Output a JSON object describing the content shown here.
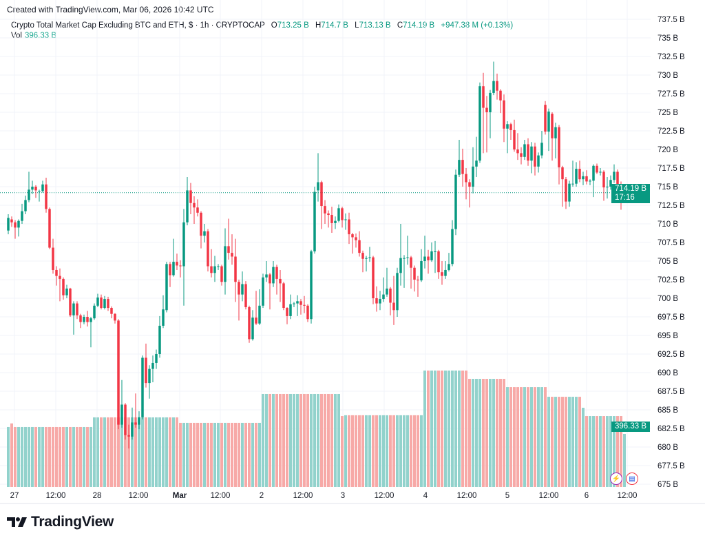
{
  "credit": "Created with TradingView.com, Mar 06, 2026 10:42 UTC",
  "legend": {
    "symbol": "Crypto Total Market Cap Excluding BTC and ETH, $ · 1h · CRYPTOCAP",
    "o_label": "O",
    "o": "713.25 B",
    "h_label": "H",
    "h": "714.7 B",
    "l_label": "L",
    "l": "713.13 B",
    "c_label": "C",
    "c": "714.19 B",
    "change": "+947.38 M (+0.13%)",
    "vol_label": "Vol",
    "vol": "396.33 B"
  },
  "price_badge": {
    "value": "714.19 B",
    "countdown": "17:16"
  },
  "volume_badge": "396.33 B",
  "logo_text": "TradingView",
  "icons": [
    "lightning-icon",
    "us-flag-icon"
  ],
  "colors": {
    "up": "#089981",
    "down": "#F23645",
    "vol_up": "#92D2CC",
    "vol_down": "#F7A9A7",
    "grid": "#F0F3FA"
  },
  "chart_data": {
    "type": "candlestick",
    "interval": "1h",
    "ylim": [
      675,
      737.5
    ],
    "y_ticks": [
      "737.5 B",
      "735 B",
      "732.5 B",
      "730 B",
      "727.5 B",
      "725 B",
      "722.5 B",
      "720 B",
      "717.5 B",
      "715 B",
      "712.5 B",
      "710 B",
      "707.5 B",
      "705 B",
      "702.5 B",
      "700 B",
      "697.5 B",
      "695 B",
      "692.5 B",
      "690 B",
      "687.5 B",
      "685 B",
      "682.5 B",
      "680 B",
      "677.5 B",
      "675 B"
    ],
    "x_ticks": [
      {
        "label": "27",
        "bold": false
      },
      {
        "label": "12:00",
        "bold": false
      },
      {
        "label": "28",
        "bold": false
      },
      {
        "label": "12:00",
        "bold": false
      },
      {
        "label": "Mar",
        "bold": true
      },
      {
        "label": "12:00",
        "bold": false
      },
      {
        "label": "2",
        "bold": false
      },
      {
        "label": "12:00",
        "bold": false
      },
      {
        "label": "3",
        "bold": false
      },
      {
        "label": "12:00",
        "bold": false
      },
      {
        "label": "4",
        "bold": false
      },
      {
        "label": "12:00",
        "bold": false
      },
      {
        "label": "5",
        "bold": false
      },
      {
        "label": "12:00",
        "bold": false
      },
      {
        "label": "6",
        "bold": false
      },
      {
        "label": "12:00",
        "bold": false
      }
    ],
    "last_price": 714.19,
    "ohlc": [
      [
        709.1,
        711.3,
        708.6,
        710.8
      ],
      [
        710.6,
        711.0,
        709.6,
        710.2
      ],
      [
        710.2,
        710.5,
        708.0,
        709.5
      ],
      [
        709.5,
        710.6,
        708.3,
        710.4
      ],
      [
        710.4,
        712.7,
        710.0,
        711.7
      ],
      [
        711.7,
        713.8,
        711.3,
        713.2
      ],
      [
        713.2,
        717.0,
        712.9,
        714.6
      ],
      [
        714.6,
        715.8,
        714.0,
        715.0
      ],
      [
        715.0,
        715.2,
        713.5,
        714.5
      ],
      [
        714.4,
        714.6,
        713.0,
        714.4
      ],
      [
        714.4,
        715.8,
        714.2,
        715.3
      ],
      [
        715.3,
        716.2,
        711.5,
        712.0
      ],
      [
        712.0,
        712.2,
        706.6,
        706.8
      ],
      [
        706.8,
        708.0,
        703.3,
        703.8
      ],
      [
        703.8,
        704.3,
        701.7,
        703.0
      ],
      [
        703.0,
        704.0,
        699.6,
        702.6
      ],
      [
        702.6,
        702.8,
        699.8,
        700.4
      ],
      [
        700.4,
        701.8,
        700.0,
        701.3
      ],
      [
        701.3,
        701.4,
        697.5,
        697.7
      ],
      [
        697.7,
        699.6,
        695.1,
        699.3
      ],
      [
        699.3,
        699.6,
        697.2,
        697.7
      ],
      [
        697.7,
        697.9,
        696.0,
        696.8
      ],
      [
        696.8,
        697.8,
        696.5,
        697.5
      ],
      [
        697.5,
        698.3,
        696.2,
        696.8
      ],
      [
        696.8,
        697.5,
        693.4,
        697.3
      ],
      [
        697.3,
        699.3,
        697.1,
        699.0
      ],
      [
        699.0,
        700.6,
        698.8,
        700.1
      ],
      [
        700.1,
        700.5,
        698.5,
        698.7
      ],
      [
        698.7,
        700.3,
        698.5,
        699.9
      ],
      [
        699.9,
        700.2,
        698.3,
        698.7
      ],
      [
        698.7,
        698.9,
        697.3,
        697.9
      ],
      [
        697.9,
        698.0,
        696.6,
        697.0
      ],
      [
        697.0,
        697.2,
        682.4,
        683.0
      ],
      [
        683.0,
        689.0,
        682.6,
        685.7
      ],
      [
        685.7,
        685.9,
        681.0,
        681.6
      ],
      [
        681.6,
        683.0,
        679.8,
        681.4
      ],
      [
        681.4,
        685.3,
        681.0,
        683.3
      ],
      [
        683.3,
        687.2,
        682.6,
        683.0
      ],
      [
        683.0,
        684.8,
        682.4,
        684.0
      ],
      [
        684.0,
        692.3,
        683.7,
        692.0
      ],
      [
        692.0,
        693.9,
        688.0,
        688.6
      ],
      [
        688.6,
        691.0,
        686.5,
        690.5
      ],
      [
        690.5,
        692.3,
        688.7,
        691.3
      ],
      [
        691.3,
        693.1,
        690.5,
        692.5
      ],
      [
        692.5,
        697.6,
        692.0,
        696.3
      ],
      [
        696.3,
        700.4,
        696.0,
        698.5
      ],
      [
        698.4,
        704.9,
        698.1,
        704.6
      ],
      [
        704.6,
        704.9,
        701.5,
        703.1
      ],
      [
        703.1,
        708.0,
        702.9,
        704.9
      ],
      [
        704.9,
        706.0,
        703.8,
        704.4
      ],
      [
        704.4,
        705.1,
        702.8,
        704.3
      ],
      [
        704.3,
        712.0,
        699.0,
        710.2
      ],
      [
        710.2,
        716.3,
        709.8,
        714.5
      ],
      [
        714.5,
        715.5,
        711.3,
        712.8
      ],
      [
        712.8,
        713.7,
        710.0,
        712.2
      ],
      [
        712.2,
        713.3,
        711.0,
        711.5
      ],
      [
        711.5,
        711.7,
        706.7,
        708.4
      ],
      [
        708.4,
        710.0,
        707.5,
        709.0
      ],
      [
        709.0,
        709.3,
        703.6,
        704.3
      ],
      [
        704.3,
        706.6,
        702.8,
        703.4
      ],
      [
        703.4,
        705.7,
        702.2,
        704.3
      ],
      [
        704.3,
        704.6,
        703.8,
        704.3
      ],
      [
        704.3,
        704.5,
        701.7,
        702.2
      ],
      [
        702.2,
        709.4,
        700.5,
        707.0
      ],
      [
        707.0,
        710.7,
        705.2,
        706.1
      ],
      [
        706.1,
        708.6,
        704.5,
        705.6
      ],
      [
        705.6,
        708.0,
        699.5,
        702.2
      ],
      [
        702.2,
        702.5,
        697.0,
        700.5
      ],
      [
        700.5,
        703.6,
        699.6,
        701.9
      ],
      [
        701.9,
        702.3,
        698.5,
        698.8
      ],
      [
        698.8,
        699.0,
        694.0,
        694.5
      ],
      [
        694.5,
        698.4,
        694.3,
        697.4
      ],
      [
        697.4,
        701.0,
        696.4,
        696.6
      ],
      [
        696.6,
        701.2,
        696.4,
        699.0
      ],
      [
        699.0,
        703.3,
        698.7,
        702.8
      ],
      [
        702.8,
        705.0,
        702.2,
        703.2
      ],
      [
        703.2,
        703.4,
        698.5,
        702.0
      ],
      [
        702.0,
        705.0,
        701.5,
        704.2
      ],
      [
        704.2,
        704.5,
        700.5,
        702.6
      ],
      [
        702.6,
        703.8,
        699.5,
        702.0
      ],
      [
        702.0,
        702.2,
        698.4,
        698.7
      ],
      [
        698.7,
        698.8,
        696.5,
        697.6
      ],
      [
        697.6,
        700.5,
        697.2,
        699.2
      ],
      [
        699.2,
        699.5,
        698.8,
        699.3
      ],
      [
        699.3,
        700.4,
        697.6,
        699.6
      ],
      [
        699.6,
        699.9,
        697.8,
        699.1
      ],
      [
        699.1,
        700.3,
        698.0,
        699.0
      ],
      [
        699.0,
        699.2,
        696.8,
        697.2
      ],
      [
        697.2,
        706.5,
        696.6,
        706.3
      ],
      [
        706.3,
        715.0,
        706.0,
        714.3
      ],
      [
        714.5,
        719.5,
        713.0,
        715.6
      ],
      [
        715.6,
        715.8,
        709.3,
        712.4
      ],
      [
        712.4,
        713.2,
        710.0,
        711.4
      ],
      [
        711.4,
        711.8,
        709.5,
        711.2
      ],
      [
        711.2,
        712.3,
        708.8,
        710.1
      ],
      [
        710.1,
        711.0,
        709.3,
        710.4
      ],
      [
        710.4,
        712.6,
        710.2,
        712.1
      ],
      [
        712.1,
        712.3,
        709.5,
        710.5
      ],
      [
        710.5,
        711.4,
        709.2,
        710.6
      ],
      [
        710.6,
        711.5,
        707.3,
        708.6
      ],
      [
        708.6,
        708.8,
        706.0,
        708.2
      ],
      [
        708.2,
        708.7,
        706.8,
        707.8
      ],
      [
        707.8,
        709.0,
        705.6,
        706.1
      ],
      [
        706.1,
        706.4,
        703.5,
        705.3
      ],
      [
        705.3,
        705.7,
        703.6,
        705.4
      ],
      [
        705.4,
        706.9,
        704.9,
        705.5
      ],
      [
        705.5,
        705.7,
        699.2,
        700.0
      ],
      [
        700.0,
        701.6,
        698.2,
        699.3
      ],
      [
        699.3,
        701.0,
        698.4,
        699.9
      ],
      [
        699.9,
        702.8,
        699.5,
        700.5
      ],
      [
        700.5,
        704.1,
        700.2,
        701.3
      ],
      [
        701.3,
        701.5,
        697.7,
        699.4
      ],
      [
        699.4,
        703.0,
        696.4,
        698.4
      ],
      [
        698.4,
        704.1,
        697.5,
        703.4
      ],
      [
        703.4,
        710.0,
        701.7,
        705.4
      ],
      [
        705.4,
        705.8,
        701.4,
        705.4
      ],
      [
        705.5,
        708.4,
        704.5,
        705.5
      ],
      [
        705.5,
        705.7,
        701.3,
        704.1
      ],
      [
        704.1,
        704.4,
        700.9,
        702.5
      ],
      [
        702.5,
        703.0,
        700.2,
        702.4
      ],
      [
        702.4,
        706.6,
        702.2,
        705.0
      ],
      [
        705.0,
        708.4,
        704.0,
        705.6
      ],
      [
        705.6,
        706.5,
        703.3,
        705.1
      ],
      [
        705.1,
        707.5,
        704.9,
        706.3
      ],
      [
        706.3,
        707.7,
        703.4,
        706.3
      ],
      [
        706.3,
        706.5,
        702.6,
        703.5
      ],
      [
        703.5,
        705.0,
        701.8,
        703.0
      ],
      [
        703.0,
        705.0,
        702.6,
        703.8
      ],
      [
        703.8,
        706.1,
        703.6,
        704.6
      ],
      [
        704.6,
        710.5,
        704.3,
        709.3
      ],
      [
        709.3,
        717.3,
        708.5,
        716.6
      ],
      [
        716.6,
        721.3,
        716.3,
        718.6
      ],
      [
        718.6,
        720.1,
        715.0,
        716.7
      ],
      [
        716.7,
        717.5,
        713.3,
        715.6
      ],
      [
        715.6,
        716.0,
        712.2,
        715.0
      ],
      [
        715.0,
        720.3,
        714.1,
        717.7
      ],
      [
        717.7,
        721.7,
        716.3,
        718.5
      ],
      [
        718.5,
        729.0,
        718.2,
        728.5
      ],
      [
        728.5,
        730.3,
        719.5,
        725.6
      ],
      [
        725.6,
        727.2,
        719.6,
        725.0
      ],
      [
        725.0,
        728.0,
        721.5,
        727.6
      ],
      [
        727.6,
        731.8,
        727.3,
        729.2
      ],
      [
        729.2,
        730.2,
        726.7,
        727.9
      ],
      [
        727.9,
        728.1,
        724.9,
        726.6
      ],
      [
        726.6,
        727.4,
        721.0,
        722.8
      ],
      [
        722.8,
        723.8,
        719.5,
        723.4
      ],
      [
        723.4,
        723.6,
        721.3,
        722.6
      ],
      [
        722.6,
        724.0,
        719.7,
        720.0
      ],
      [
        720.0,
        722.2,
        718.6,
        719.5
      ],
      [
        719.5,
        720.3,
        718.0,
        719.0
      ],
      [
        719.0,
        721.3,
        718.6,
        720.7
      ],
      [
        720.7,
        721.5,
        717.8,
        718.5
      ],
      [
        718.5,
        721.0,
        716.8,
        720.4
      ],
      [
        720.4,
        720.9,
        716.5,
        717.7
      ],
      [
        717.7,
        719.6,
        716.9,
        719.2
      ],
      [
        719.2,
        722.5,
        718.8,
        720.9
      ],
      [
        726.0,
        726.5,
        722.0,
        722.4
      ],
      [
        722.4,
        725.5,
        719.8,
        725.1
      ],
      [
        724.8,
        725.0,
        718.5,
        721.5
      ],
      [
        721.5,
        723.6,
        718.8,
        723.0
      ],
      [
        723.0,
        723.3,
        715.3,
        717.6
      ],
      [
        717.6,
        717.8,
        712.3,
        716.0
      ],
      [
        716.0,
        716.3,
        712.0,
        713.0
      ],
      [
        713.0,
        715.8,
        712.3,
        715.4
      ],
      [
        715.4,
        718.5,
        715.0,
        715.4
      ],
      [
        715.4,
        718.3,
        715.0,
        717.4
      ],
      [
        717.4,
        718.5,
        715.6,
        716.0
      ],
      [
        716.0,
        717.0,
        715.2,
        716.4
      ],
      [
        716.4,
        717.2,
        715.3,
        715.7
      ],
      [
        715.7,
        716.0,
        715.2,
        715.8
      ],
      [
        715.8,
        718.0,
        713.6,
        717.8
      ],
      [
        717.8,
        718.1,
        716.7,
        716.9
      ],
      [
        716.9,
        717.5,
        716.5,
        717.0
      ],
      [
        717.0,
        717.2,
        713.1,
        714.9
      ],
      [
        714.9,
        716.3,
        713.4,
        715.0
      ],
      [
        715.0,
        716.5,
        714.6,
        715.9
      ],
      [
        715.9,
        718.0,
        715.5,
        717.0
      ],
      [
        717.0,
        717.3,
        714.8,
        715.1
      ],
      [
        715.1,
        715.7,
        711.9,
        713.2
      ],
      [
        713.25,
        714.7,
        713.13,
        714.19
      ]
    ],
    "volume": [
      448,
      475,
      448,
      448,
      448,
      448,
      448,
      448,
      448,
      448,
      448,
      448,
      448,
      448,
      448,
      448,
      448,
      448,
      448,
      448,
      448,
      448,
      448,
      448,
      448,
      520,
      520,
      520,
      520,
      520,
      520,
      520,
      520,
      520,
      520,
      520,
      520,
      520,
      520,
      520,
      520,
      520,
      520,
      520,
      520,
      520,
      520,
      520,
      520,
      520,
      479,
      479,
      479,
      479,
      479,
      479,
      479,
      479,
      479,
      479,
      479,
      479,
      479,
      479,
      479,
      479,
      479,
      479,
      479,
      479,
      479,
      479,
      479,
      479,
      695,
      695,
      695,
      695,
      695,
      695,
      695,
      695,
      695,
      695,
      695,
      695,
      695,
      695,
      695,
      695,
      695,
      695,
      695,
      695,
      695,
      695,
      695,
      530,
      536,
      536,
      536,
      536,
      536,
      536,
      536,
      536,
      536,
      536,
      536,
      536,
      536,
      536,
      536,
      536,
      536,
      536,
      536,
      536,
      536,
      536,
      536,
      870,
      870,
      870,
      870,
      870,
      870,
      870,
      870,
      870,
      870,
      870,
      870,
      870,
      808,
      808,
      808,
      808,
      808,
      808,
      808,
      808,
      808,
      808,
      808,
      746,
      746,
      746,
      746,
      746,
      746,
      746,
      746,
      746,
      746,
      746,
      746,
      674,
      674,
      674,
      674,
      674,
      674,
      674,
      674,
      674,
      674,
      592,
      530,
      530,
      530,
      530,
      530,
      530,
      530,
      530,
      530,
      530,
      530,
      396.33
    ]
  }
}
